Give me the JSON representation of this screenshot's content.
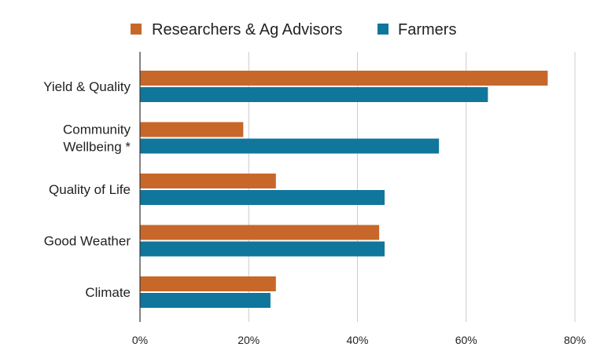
{
  "chart_data": {
    "type": "bar",
    "orientation": "horizontal",
    "categories": [
      "Yield & Quality",
      "Community Wellbeing *",
      "Quality of Life",
      "Good Weather",
      "Climate"
    ],
    "category_lines": [
      [
        "Yield & Quality"
      ],
      [
        "Community",
        "Wellbeing *"
      ],
      [
        "Quality of Life"
      ],
      [
        "Good Weather"
      ],
      [
        "Climate"
      ]
    ],
    "series": [
      {
        "name": "Researchers & Ag Advisors",
        "color": "#c8672a",
        "values": [
          75,
          19,
          25,
          44,
          25
        ]
      },
      {
        "name": "Farmers",
        "color": "#10769c",
        "values": [
          64,
          55,
          45,
          45,
          24
        ]
      }
    ],
    "xlim": [
      0,
      80
    ],
    "xticks": [
      0,
      20,
      40,
      60,
      80
    ],
    "xtick_labels": [
      "0%",
      "20%",
      "40%",
      "60%",
      "80%"
    ],
    "grid": true,
    "legend_position": "top"
  }
}
